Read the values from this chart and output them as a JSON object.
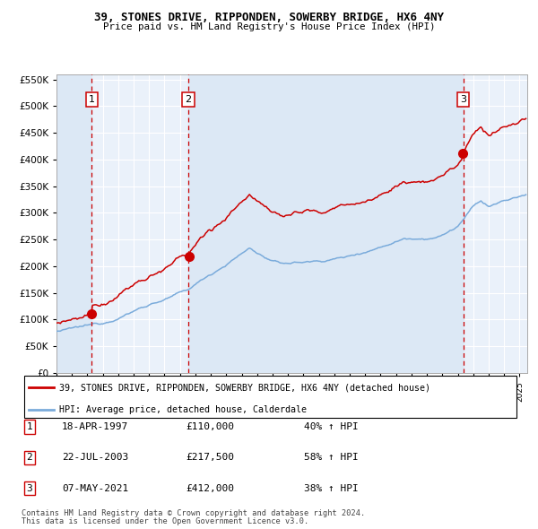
{
  "title1": "39, STONES DRIVE, RIPPONDEN, SOWERBY BRIDGE, HX6 4NY",
  "title2": "Price paid vs. HM Land Registry's House Price Index (HPI)",
  "sale1_date": "18-APR-1997",
  "sale1_price": 110000,
  "sale1_year": 1997.29,
  "sale2_date": "22-JUL-2003",
  "sale2_price": 217500,
  "sale2_year": 2003.55,
  "sale3_date": "07-MAY-2021",
  "sale3_price": 412000,
  "sale3_year": 2021.35,
  "sale1_hpi_pct": "40% ↑ HPI",
  "sale2_hpi_pct": "58% ↑ HPI",
  "sale3_hpi_pct": "38% ↑ HPI",
  "legend1": "39, STONES DRIVE, RIPPONDEN, SOWERBY BRIDGE, HX6 4NY (detached house)",
  "legend2": "HPI: Average price, detached house, Calderdale",
  "footnote1": "Contains HM Land Registry data © Crown copyright and database right 2024.",
  "footnote2": "This data is licensed under the Open Government Licence v3.0.",
  "hpi_color": "#7aabdb",
  "price_color": "#cc0000",
  "dot_color": "#cc0000",
  "vline_color": "#cc0000",
  "bg_shaded_color": "#dce8f5",
  "bg_main_color": "#eaf1fa",
  "grid_color": "#ffffff",
  "ylim_max": 560000,
  "ylim_min": 0,
  "xmin": 1995.0,
  "xmax": 2025.5
}
